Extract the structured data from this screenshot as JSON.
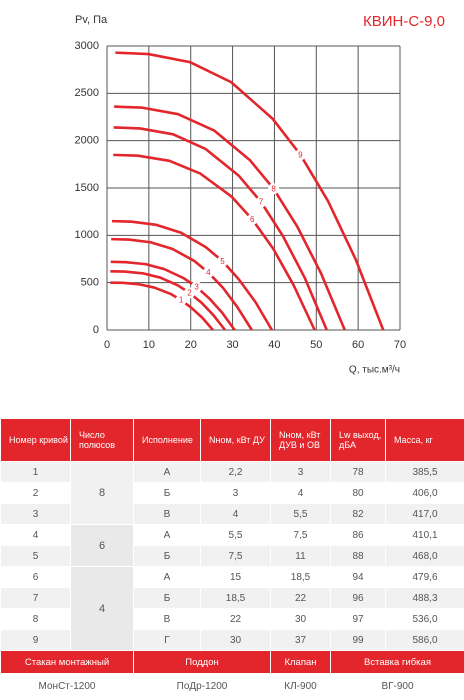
{
  "chart_data": {
    "type": "line",
    "title": "КВИН-С-9,0",
    "y_label": "Pv, Па",
    "x_label": "Q, тыс.м³/ч",
    "color": "#e3262c",
    "grid": true,
    "xlim": [
      0,
      70
    ],
    "xticks": [
      0,
      10,
      20,
      30,
      40,
      50,
      60,
      70
    ],
    "ylim": [
      0,
      3000
    ],
    "yticks": [
      0,
      500,
      1000,
      1500,
      2000,
      2500,
      3000
    ],
    "series": [
      {
        "name": "1",
        "x": [
          0.8,
          3.8,
          7.6,
          11.4,
          15.2,
          17.7,
          20.2,
          22.8,
          25.3
        ],
        "values": [
          500,
          498,
          483,
          447,
          381,
          316,
          233,
          128,
          0
        ]
      },
      {
        "name": "2",
        "x": [
          0.8,
          4.2,
          8.5,
          12.7,
          16.9,
          19.7,
          22.6,
          25.4,
          28.2
        ],
        "values": [
          620,
          617,
          599,
          554,
          472,
          392,
          288,
          158,
          0
        ]
      },
      {
        "name": "3",
        "x": [
          0.9,
          4.6,
          9.2,
          13.7,
          18.3,
          21.4,
          24.4,
          27.5,
          30.5
        ],
        "values": [
          720,
          716,
          696,
          643,
          548,
          455,
          335,
          184,
          0
        ]
      },
      {
        "name": "4",
        "x": [
          1,
          5.2,
          10.4,
          15.6,
          20.8,
          24.2,
          27.7,
          31.1,
          34.6
        ],
        "values": [
          960,
          955,
          927,
          857,
          731,
          607,
          446,
          245,
          0
        ]
      },
      {
        "name": "5",
        "x": [
          1.2,
          5.9,
          11.8,
          17.7,
          23.6,
          27.6,
          31.5,
          35.5,
          39.4
        ],
        "values": [
          1150,
          1144,
          1111,
          1027,
          875,
          727,
          535,
          293,
          0
        ]
      },
      {
        "name": "6",
        "x": [
          1.5,
          7.4,
          14.9,
          22.3,
          29.8,
          34.7,
          39.7,
          44.6,
          49.6
        ],
        "values": [
          1850,
          1841,
          1787,
          1652,
          1408,
          1169,
          860,
          472,
          0
        ]
      },
      {
        "name": "7",
        "x": [
          1.6,
          7.9,
          15.8,
          23.6,
          31.5,
          36.8,
          42,
          47.3,
          52.5
        ],
        "values": [
          2140,
          2129,
          2067,
          1911,
          1629,
          1352,
          995,
          546,
          0
        ]
      },
      {
        "name": "8",
        "x": [
          1.7,
          8.5,
          17,
          25.6,
          34.1,
          39.8,
          45.4,
          51.1,
          56.8
        ],
        "values": [
          2360,
          2348,
          2280,
          2107,
          1796,
          1492,
          1097,
          602,
          0
        ]
      },
      {
        "name": "9",
        "x": [
          2,
          9.9,
          19.8,
          29.7,
          39.6,
          46.2,
          52.8,
          59.4,
          66
        ],
        "values": [
          2930,
          2915,
          2830,
          2617,
          2230,
          1852,
          1362,
          747,
          0
        ]
      }
    ]
  },
  "table": {
    "headers": [
      "Номер кривой",
      "Число полюсов",
      "Исполнение",
      "Nном, кВт ДУ",
      "Nном, кВт ДУВ и ОВ",
      "Lw выход, дБА",
      "Масса, кг"
    ],
    "rows": [
      [
        "1",
        "8",
        "А",
        "2,2",
        "3",
        "78",
        "385,5"
      ],
      [
        "2",
        null,
        "Б",
        "3",
        "4",
        "80",
        "406,0"
      ],
      [
        "3",
        null,
        "В",
        "4",
        "5,5",
        "82",
        "417,0"
      ],
      [
        "4",
        "6",
        "А",
        "5,5",
        "7,5",
        "86",
        "410,1"
      ],
      [
        "5",
        null,
        "Б",
        "7,5",
        "11",
        "88",
        "468,0"
      ],
      [
        "6",
        "4",
        "А",
        "15",
        "18,5",
        "94",
        "479,6"
      ],
      [
        "7",
        null,
        "Б",
        "18,5",
        "22",
        "96",
        "488,3"
      ],
      [
        "8",
        null,
        "В",
        "22",
        "30",
        "97",
        "536,0"
      ],
      [
        "9",
        null,
        "Г",
        "30",
        "37",
        "99",
        "586,0"
      ]
    ],
    "accessories": {
      "headers": [
        "Стакан монтажный",
        "Поддон",
        "Клапан",
        "Вставка гибкая"
      ],
      "values": [
        "МонСт-1200",
        "ПоДр-1200",
        "КЛ-900",
        "ВГ-900"
      ]
    }
  }
}
